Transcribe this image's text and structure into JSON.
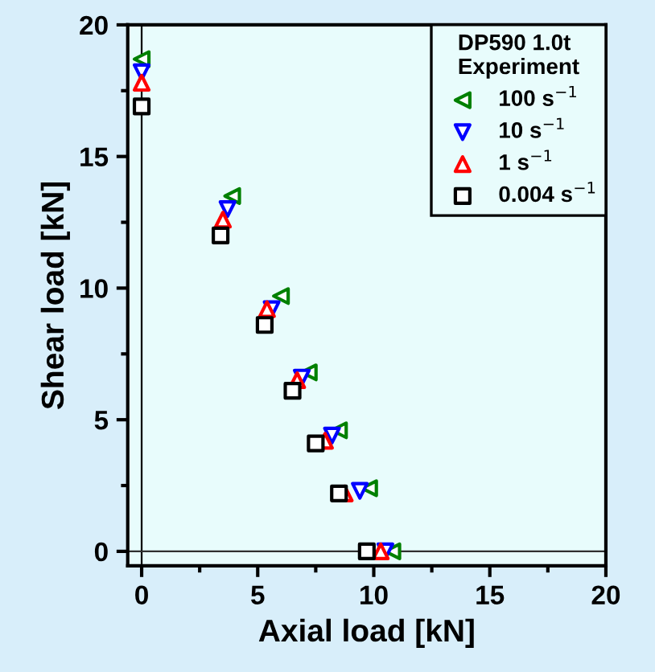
{
  "chart_data": {
    "type": "scatter",
    "xlabel": "Axial load [kN]",
    "ylabel": "Shear load [kN]",
    "legend_title": "DP590 1.0t\nExperiment",
    "xlim": [
      -0.6,
      20
    ],
    "ylim": [
      -0.55,
      20
    ],
    "xticks": [
      0,
      5,
      10,
      15,
      20
    ],
    "yticks": [
      0,
      5,
      10,
      15,
      20
    ],
    "grid": false,
    "legend": "top right",
    "ref_lines": [
      {
        "axis": "x",
        "value": 0,
        "color": "#000000"
      },
      {
        "axis": "y",
        "value": 0,
        "color": "#303030"
      }
    ],
    "series": [
      {
        "name": "100 s$^{−1}$",
        "color": "#008000",
        "marker": "triangle_left",
        "x": [
          0,
          3.9,
          6.0,
          7.2,
          8.5,
          9.8,
          10.8
        ],
        "values": [
          18.7,
          13.5,
          9.7,
          6.8,
          4.6,
          2.4,
          0
        ]
      },
      {
        "name": "10 s$^{−1}$",
        "color": "#0000ff",
        "marker": "triangle_down",
        "x": [
          0,
          3.7,
          5.6,
          6.9,
          8.2,
          9.4,
          10.5
        ],
        "values": [
          18.2,
          13.0,
          9.2,
          6.6,
          4.4,
          2.3,
          0
        ]
      },
      {
        "name": "1 s$^{−1}$",
        "color": "#ff0000",
        "marker": "triangle",
        "x": [
          0,
          3.5,
          5.4,
          6.7,
          7.9,
          8.75,
          10.3
        ],
        "values": [
          17.8,
          12.6,
          9.2,
          6.5,
          4.2,
          2.2,
          0
        ]
      },
      {
        "name": "0.004 s$^{−1}$",
        "color": "#000000",
        "marker": "square",
        "x": [
          0,
          3.4,
          5.3,
          6.5,
          7.5,
          8.5,
          9.7
        ],
        "values": [
          16.9,
          12.0,
          8.6,
          6.1,
          4.1,
          2.2,
          0
        ]
      }
    ]
  }
}
